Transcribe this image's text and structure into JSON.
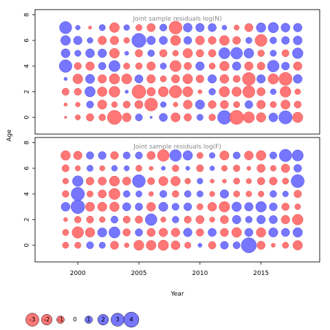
{
  "chart_data": {
    "type": "scatter",
    "encoding": "bubble area proportional to |residual|; red = negative, blue = positive",
    "colors": {
      "negative": "#ff6a6a",
      "positive": "#6a6aff",
      "stroke_neg": "#e05050",
      "stroke_pos": "#5050e0"
    },
    "years": [
      1999,
      2000,
      2001,
      2002,
      2003,
      2004,
      2005,
      2006,
      2007,
      2008,
      2009,
      2010,
      2011,
      2012,
      2013,
      2014,
      2015,
      2016,
      2017,
      2018
    ],
    "ages": [
      0,
      1,
      2,
      3,
      4,
      5,
      6,
      7
    ],
    "xlabel": "Year",
    "ylabel": "Age",
    "xlim": [
      1996.5,
      2019.8
    ],
    "ylim": [
      -1.3,
      8.4
    ],
    "xticks": [
      2000,
      2005,
      2010,
      2015
    ],
    "yticks": [
      0,
      2,
      4,
      6,
      8
    ],
    "panels": [
      {
        "title": "Joint sample residuals log(N)",
        "residuals": [
          [
            -0.1,
            -0.5,
            -1.0,
            -0.8,
            -3.5,
            -1.4,
            0.9,
            0.1,
            1.2,
            -1.5,
            -1.0,
            0.7,
            -0.8,
            3.3,
            -3.5,
            -2.2,
            -1.6,
            1.4,
            3.1,
            -1.9
          ],
          [
            -0.2,
            -0.4,
            0.9,
            -1.5,
            -0.6,
            -0.9,
            -1.2,
            -2.9,
            0.6,
            -0.4,
            -1.4,
            1.5,
            -1.1,
            -1.2,
            -0.7,
            1.1,
            -1.3,
            -0.7,
            -1.5,
            -0.9
          ],
          [
            -0.9,
            -0.9,
            1.9,
            -1.6,
            -2.1,
            0.2,
            -3.3,
            -1.3,
            -1.8,
            -2.7,
            -1.8,
            -0.3,
            0.8,
            -1.9,
            -1.6,
            -2.6,
            -1.2,
            0.6,
            -2.1,
            -0.6
          ],
          [
            0.2,
            -1.7,
            1.5,
            -1.3,
            -1.9,
            -1.8,
            1.2,
            -1.3,
            -0.7,
            -1.2,
            -1.7,
            -1.1,
            1.3,
            -1.4,
            -0.9,
            -2.9,
            1.3,
            -1.9,
            -3.0,
            1.4
          ],
          [
            2.8,
            -0.9,
            -1.3,
            1.0,
            2.2,
            -0.7,
            -0.8,
            -1.3,
            0.7,
            -2.2,
            -1.0,
            1.3,
            -0.7,
            -1.6,
            1.3,
            -1.3,
            -1.1,
            2.4,
            1.1,
            -1.3
          ],
          [
            1.4,
            0.7,
            1.4,
            1.3,
            -1.7,
            0.3,
            -1.0,
            0.8,
            -1.0,
            -0.6,
            -1.6,
            -1.0,
            -1.0,
            2.2,
            2.4,
            1.7,
            -0.8,
            0.7,
            -0.9,
            2.0
          ],
          [
            1.7,
            1.3,
            0.6,
            -1.3,
            -1.3,
            -0.6,
            3.5,
            1.3,
            1.2,
            -1.8,
            1.1,
            -1.4,
            -1.1,
            -1.7,
            -1.1,
            0.7,
            -2.5,
            0.8,
            1.1,
            1.4
          ],
          [
            2.6,
            0.4,
            -0.2,
            0.7,
            -1.7,
            0.6,
            -0.7,
            -1.2,
            0.9,
            -2.9,
            1.4,
            1.3,
            1.2,
            0.4,
            -0.5,
            -1.2,
            1.6,
            1.9,
            1.4,
            1.3
          ]
        ]
      },
      {
        "title": "Joint sample residuals log(F)",
        "residuals": [
          [
            -0.7,
            -0.7,
            0.9,
            0.7,
            -1.2,
            -0.4,
            -1.8,
            -1.7,
            -1.9,
            -1.4,
            -0.7,
            0.3,
            -1.0,
            1.1,
            0.9,
            4.0,
            -1.2,
            -0.3,
            -0.7,
            -1.6
          ],
          [
            -0.7,
            -2.3,
            -1.6,
            1.5,
            2.2,
            -1.0,
            1.0,
            -1.2,
            -1.3,
            -1.3,
            1.3,
            -1.0,
            1.2,
            -1.2,
            -1.7,
            1.2,
            -1.6,
            1.5,
            1.2,
            1.6
          ],
          [
            -0.3,
            -0.8,
            -0.9,
            -0.6,
            0.9,
            -0.9,
            -1.0,
            2.4,
            -0.5,
            0.8,
            -0.9,
            -1.2,
            -0.5,
            -1.2,
            1.3,
            0.8,
            1.3,
            1.2,
            -1.3,
            -2.0
          ],
          [
            1.4,
            3.3,
            -1.5,
            -1.5,
            -1.6,
            1.2,
            1.0,
            -1.4,
            1.5,
            0.9,
            1.1,
            -0.7,
            -1.4,
            -2.0,
            1.6,
            1.3,
            2.0,
            1.1,
            -1.0,
            -0.6
          ],
          [
            -0.8,
            3.1,
            -0.7,
            -1.2,
            -2.2,
            0.8,
            0.7,
            -0.4,
            0.9,
            -0.8,
            0.8,
            0.7,
            -0.5,
            1.3,
            -0.7,
            -0.6,
            -0.6,
            0.8,
            0.6,
            -1.0
          ],
          [
            -0.6,
            2.0,
            -1.1,
            -1.2,
            -1.8,
            -1.2,
            2.9,
            -0.9,
            -1.5,
            -1.6,
            -0.6,
            0.6,
            -0.3,
            -0.3,
            -0.7,
            -0.5,
            -1.0,
            -1.1,
            -0.7,
            3.0
          ],
          [
            -0.9,
            -0.5,
            0.7,
            -0.5,
            0.6,
            0.5,
            -0.7,
            -0.3,
            0.3,
            -0.8,
            0.3,
            -0.9,
            0.4,
            -0.6,
            -0.8,
            -0.3,
            -1.2,
            -0.6,
            -1.3,
            1.1
          ],
          [
            -1.6,
            -1.3,
            1.0,
            1.1,
            -1.1,
            0.9,
            0.9,
            -1.2,
            -2.4,
            2.4,
            1.6,
            -0.7,
            0.6,
            -1.5,
            0.9,
            -1.4,
            -1.7,
            0.9,
            2.7,
            2.2
          ]
        ]
      }
    ],
    "legend": {
      "position": "bottom-left",
      "items": [
        {
          "value": -3,
          "label": "-3"
        },
        {
          "value": -2,
          "label": "-2"
        },
        {
          "value": -1,
          "label": "-1"
        },
        {
          "value": 0,
          "label": "0"
        },
        {
          "value": 1,
          "label": "1"
        },
        {
          "value": 2,
          "label": "2"
        },
        {
          "value": 3,
          "label": "3"
        },
        {
          "value": 4,
          "label": "4"
        }
      ]
    }
  }
}
